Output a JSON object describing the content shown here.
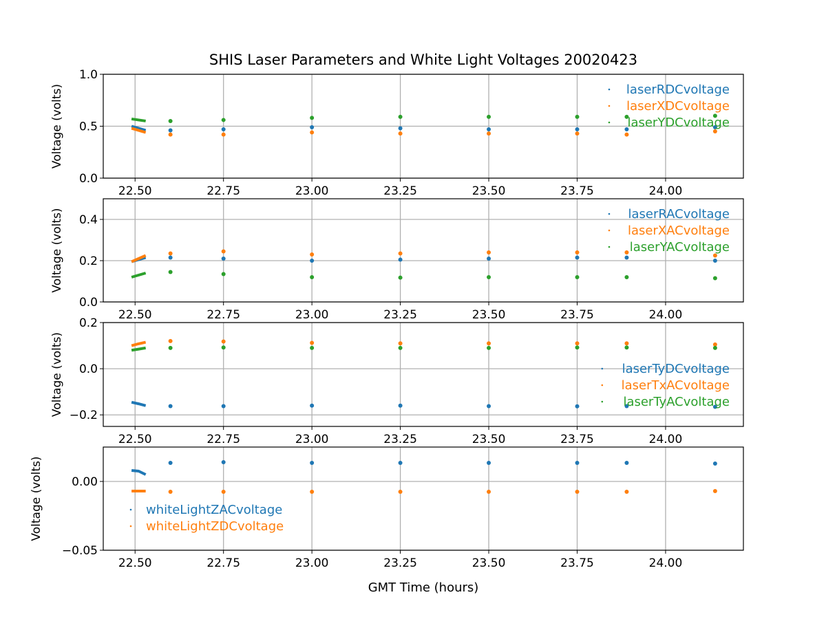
{
  "chart_data": {
    "type": "scatter",
    "title": "SHIS Laser Parameters and White Light Voltages 20020423",
    "xlabel": "GMT Time (hours)",
    "xlim": [
      22.41,
      24.22
    ],
    "xticks": [
      22.5,
      22.75,
      23.0,
      23.25,
      23.5,
      23.75,
      24.0
    ],
    "xtick_labels": [
      "22.50",
      "22.75",
      "23.00",
      "23.25",
      "23.50",
      "23.75",
      "24.00"
    ],
    "grid": true,
    "x": [
      22.49,
      22.51,
      22.53,
      22.6,
      22.75,
      23.0,
      23.25,
      23.5,
      23.75,
      23.89,
      24.14
    ],
    "panels": [
      {
        "ylabel": "Voltage (volts)",
        "ylim": [
          0,
          1
        ],
        "yticks": [
          0,
          0.5,
          1.0
        ],
        "ytick_labels": [
          "0.0",
          "0.5",
          "1.0"
        ],
        "legend": "top-right",
        "series": [
          {
            "name": "laserRDCvoltage",
            "color": "#1f77b4",
            "values": [
              0.5,
              0.48,
              0.46,
              0.46,
              0.47,
              0.49,
              0.48,
              0.47,
              0.47,
              0.47,
              0.49
            ]
          },
          {
            "name": "laserXDCvoltage",
            "color": "#ff7f0e",
            "values": [
              0.48,
              0.46,
              0.44,
              0.42,
              0.42,
              0.44,
              0.43,
              0.43,
              0.43,
              0.42,
              0.45
            ]
          },
          {
            "name": "laserYDCvoltage",
            "color": "#2ca02c",
            "values": [
              0.57,
              0.56,
              0.55,
              0.55,
              0.56,
              0.58,
              0.59,
              0.59,
              0.59,
              0.59,
              0.6
            ]
          }
        ]
      },
      {
        "ylabel": "Voltage (volts)",
        "ylim": [
          0,
          0.5
        ],
        "yticks": [
          0,
          0.2,
          0.4
        ],
        "ytick_labels": [
          "0.0",
          "0.2",
          "0.4"
        ],
        "legend": "top-right",
        "series": [
          {
            "name": "laserRACvoltage",
            "color": "#1f77b4",
            "values": [
              0.195,
              0.205,
              0.215,
              0.215,
              0.21,
              0.2,
              0.205,
              0.21,
              0.215,
              0.215,
              0.2
            ]
          },
          {
            "name": "laserXACvoltage",
            "color": "#ff7f0e",
            "values": [
              0.195,
              0.21,
              0.225,
              0.235,
              0.245,
              0.23,
              0.235,
              0.24,
              0.24,
              0.24,
              0.225
            ]
          },
          {
            "name": "laserYACvoltage",
            "color": "#2ca02c",
            "values": [
              0.12,
              0.13,
              0.14,
              0.145,
              0.135,
              0.12,
              0.118,
              0.12,
              0.12,
              0.12,
              0.115
            ]
          }
        ]
      },
      {
        "ylabel": "Voltage (volts)",
        "ylim": [
          -0.25,
          0.2
        ],
        "yticks": [
          -0.2,
          0.0,
          0.2
        ],
        "ytick_labels": [
          "−0.2",
          "0.0",
          "0.2"
        ],
        "legend": "center-right",
        "series": [
          {
            "name": "laserTyDCvoltage",
            "color": "#1f77b4",
            "values": [
              -0.145,
              -0.152,
              -0.16,
              -0.162,
              -0.162,
              -0.16,
              -0.16,
              -0.162,
              -0.163,
              -0.162,
              -0.165
            ]
          },
          {
            "name": "laserTxACvoltage",
            "color": "#ff7f0e",
            "values": [
              0.1,
              0.108,
              0.115,
              0.12,
              0.118,
              0.112,
              0.11,
              0.11,
              0.11,
              0.11,
              0.105
            ]
          },
          {
            "name": "laserTyACvoltage",
            "color": "#2ca02c",
            "values": [
              0.08,
              0.085,
              0.09,
              0.09,
              0.092,
              0.09,
              0.09,
              0.09,
              0.092,
              0.092,
              0.09
            ]
          }
        ]
      },
      {
        "ylabel": "Voltage (volts)",
        "ylim": [
          -0.05,
          0.025
        ],
        "yticks": [
          -0.05,
          0.0
        ],
        "ytick_labels": [
          "−0.05",
          "0.00"
        ],
        "legend": "lower-left",
        "series": [
          {
            "name": "whiteLightZACvoltage",
            "color": "#1f77b4",
            "values": [
              0.008,
              0.0075,
              0.005,
              0.0135,
              0.014,
              0.0135,
              0.0135,
              0.0135,
              0.0135,
              0.0135,
              0.013
            ]
          },
          {
            "name": "whiteLightZDCvoltage",
            "color": "#ff7f0e",
            "values": [
              -0.007,
              -0.007,
              -0.007,
              -0.0075,
              -0.0075,
              -0.0075,
              -0.0075,
              -0.0075,
              -0.0075,
              -0.0075,
              -0.007
            ]
          }
        ]
      }
    ]
  }
}
